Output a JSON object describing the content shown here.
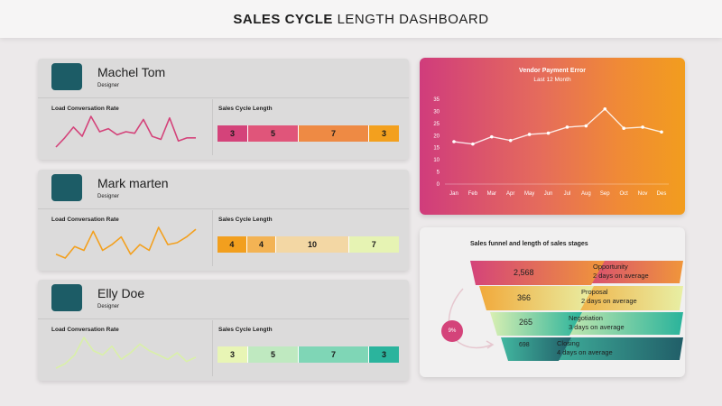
{
  "header": {
    "title_bold": "SALES CYCLE",
    "title_rest": " LENGTH DASHBOARD"
  },
  "people": [
    {
      "name": "Machel Tom",
      "role": "Designer",
      "chart_label": "Load Conversation Rate",
      "bar_label": "Sales Cycle Length",
      "spark_color": "#d4437a",
      "spark": [
        2,
        8,
        15,
        9,
        22,
        12,
        14,
        10,
        12,
        11,
        20,
        9,
        7,
        21,
        6,
        8,
        8
      ],
      "segments": [
        {
          "value": "3",
          "color": "#d4437a"
        },
        {
          "value": "5",
          "color": "#e0557a"
        },
        {
          "value": "7",
          "color": "#ee8a44"
        },
        {
          "value": "3",
          "color": "#f3a01e"
        }
      ]
    },
    {
      "name": "Mark marten",
      "role": "Designer",
      "chart_label": "Load Conversation Rate",
      "bar_label": "Sales Cycle Length",
      "spark_color": "#f3a01e",
      "spark": [
        4,
        2,
        8,
        6,
        16,
        6,
        9,
        13,
        4,
        9,
        6,
        18,
        9,
        10,
        13,
        17
      ],
      "segments": [
        {
          "value": "4",
          "color": "#f29f1e"
        },
        {
          "value": "4",
          "color": "#f3b354"
        },
        {
          "value": "10",
          "color": "#f3d7a4"
        },
        {
          "value": "7",
          "color": "#e6f3b3"
        }
      ]
    },
    {
      "name": "Elly Doe",
      "role": "Designer",
      "chart_label": "Load Conversation Rate",
      "bar_label": "Sales Cycle Length",
      "spark_color": "#d9f0a8",
      "spark": [
        2,
        4,
        8,
        16,
        10,
        8,
        12,
        6,
        9,
        13,
        10,
        8,
        6,
        9,
        5,
        7
      ],
      "segments": [
        {
          "value": "3",
          "color": "#e8f5b5"
        },
        {
          "value": "5",
          "color": "#bfe9c0"
        },
        {
          "value": "7",
          "color": "#7fd6b6"
        },
        {
          "value": "3",
          "color": "#2bb49d"
        }
      ]
    }
  ],
  "chart_data": {
    "type": "line",
    "title": "Vendor Payment Error",
    "subtitle": "Last 12 Month",
    "categories": [
      "Jan",
      "Feb",
      "Mar",
      "Apr",
      "May",
      "Jun",
      "Jul",
      "Aug",
      "Sep",
      "Oct",
      "Nov",
      "Des"
    ],
    "values": [
      17.5,
      16.5,
      19.5,
      18,
      20.5,
      21,
      23.5,
      24,
      31,
      23,
      23.5,
      21.5
    ],
    "ylim": [
      0,
      35
    ],
    "yticks": [
      "0",
      "5",
      "10",
      "15",
      "20",
      "25",
      "30",
      "35"
    ],
    "grid": false,
    "line_color": "#ffffff"
  },
  "funnel": {
    "title": "Sales funnel and length of sales stages",
    "percent": "9%",
    "stages": [
      {
        "value": "2,568",
        "name": "Opportunity",
        "duration": "2 days on average",
        "color": "#e7785a"
      },
      {
        "value": "366",
        "name": "Proposal",
        "duration": "2 days on average",
        "color": "#efcf7a"
      },
      {
        "value": "265",
        "name": "Negotiation",
        "duration": "3 days on average",
        "color": "#58c9a9"
      },
      {
        "value": "698",
        "name": "Closing",
        "duration": "4 days on average",
        "color": "#2a8a86"
      }
    ]
  }
}
